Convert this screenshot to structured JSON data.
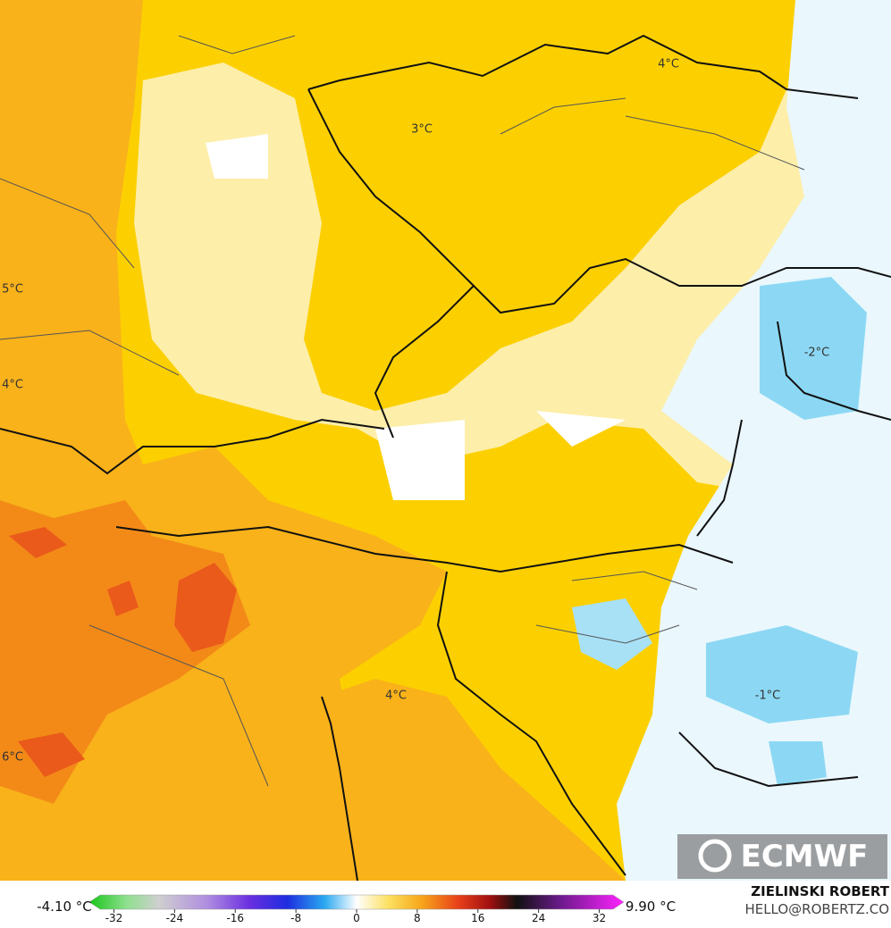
{
  "map": {
    "labels": [
      "4°C",
      "3°C",
      "5°C",
      "4°C",
      "-2°C",
      "4°C",
      "-1°C",
      "6°C"
    ],
    "logo": "ECMWF"
  },
  "legend": {
    "min_label": "-4.10 °C",
    "max_label": "9.90 °C",
    "ticks": [
      -32,
      -24,
      -16,
      -8,
      0,
      8,
      16,
      24,
      32
    ]
  },
  "credits": {
    "name": "ZIELINSKI ROBERT",
    "email": "HELLO@ROBERTZ.CO"
  }
}
